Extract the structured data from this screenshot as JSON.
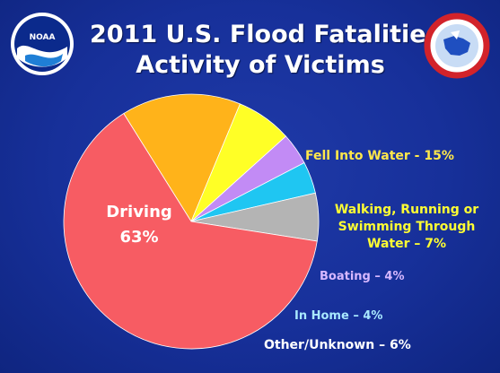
{
  "title": {
    "line1": "2011 U.S. Flood Fatalities",
    "line2": "Activity of Victims"
  },
  "logos": {
    "left": {
      "icon": "noaa-logo-icon",
      "text": "NOAA"
    },
    "right": {
      "icon": "nws-logo-icon"
    }
  },
  "colors": {
    "background": "#1a34a0",
    "title": "#ffffff"
  },
  "chart_data": {
    "type": "pie",
    "title": "2011 U.S. Flood Fatalities Activity of Victims",
    "slices": [
      {
        "name": "Fell Into Water",
        "value": 15,
        "color": "#ffb31a",
        "label_lines": [
          "Fell Into Water - 15%"
        ],
        "label_color": "#ffe84a"
      },
      {
        "name": "Walking, Running or Swimming Through Water",
        "value": 7,
        "color": "#ffff26",
        "label_lines": [
          "Walking, Running or",
          "Swimming Through",
          "Water – 7%"
        ],
        "label_color": "#ffff33"
      },
      {
        "name": "Boating",
        "value": 4,
        "color": "#c28bf5",
        "label_lines": [
          "Boating – 4%"
        ],
        "label_color": "#d7b8ff"
      },
      {
        "name": "In Home",
        "value": 4,
        "color": "#1fc6f2",
        "label_lines": [
          "In Home – 4%"
        ],
        "label_color": "#a9e9ff"
      },
      {
        "name": "Other/Unknown",
        "value": 6,
        "color": "#b4b4b4",
        "label_lines": [
          "Other/Unknown – 6%"
        ],
        "label_color": "#ffffff"
      },
      {
        "name": "Driving",
        "value": 63,
        "color": "#f75c63",
        "label_lines": [
          "Driving",
          "63%"
        ],
        "label_color": "#ffffff"
      }
    ],
    "legend": "none"
  }
}
